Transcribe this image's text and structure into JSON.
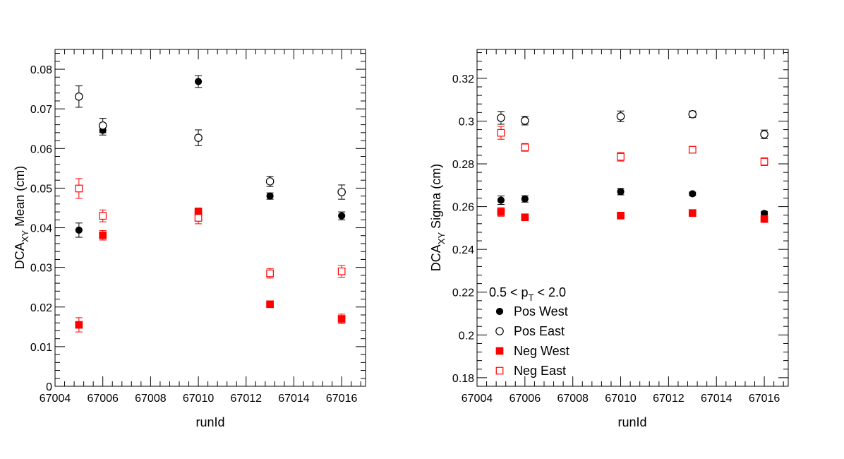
{
  "chart_data": [
    {
      "type": "scatter",
      "xlabel": "runId",
      "ylabel_main": "DCA",
      "ylabel_sub": "XY",
      "ylabel_rest": " Mean (cm)",
      "xlim": [
        67004,
        67017
      ],
      "ylim": [
        0,
        0.085
      ],
      "xticks": [
        67004,
        67006,
        67008,
        67010,
        67012,
        67014,
        67016
      ],
      "xtick_labels": [
        "67004",
        "67006",
        "67008",
        "67010",
        "67012",
        "67014",
        "67016"
      ],
      "yticks": [
        0,
        0.01,
        0.02,
        0.03,
        0.04,
        0.05,
        0.06,
        0.07,
        0.08
      ],
      "ytick_labels": [
        "0",
        "0.01",
        "0.02",
        "0.03",
        "0.04",
        "0.05",
        "0.06",
        "0.07",
        "0.08"
      ],
      "series": [
        {
          "name": "Pos West",
          "marker": "filled-circle",
          "color": "#000000",
          "x": [
            67005,
            67006,
            67010,
            67013,
            67016
          ],
          "y": [
            0.0394,
            0.0646,
            0.0769,
            0.048,
            0.043
          ],
          "err": [
            0.0018,
            0.0012,
            0.0015,
            0.0008,
            0.001
          ]
        },
        {
          "name": "Pos East",
          "marker": "open-circle",
          "color": "#000000",
          "x": [
            67005,
            67006,
            67010,
            67013,
            67016
          ],
          "y": [
            0.0731,
            0.0658,
            0.0627,
            0.0517,
            0.049
          ],
          "err": [
            0.0027,
            0.0018,
            0.002,
            0.0013,
            0.0018
          ]
        },
        {
          "name": "Neg West",
          "marker": "filled-square",
          "color": "#ff0000",
          "x": [
            67005,
            67006,
            67010,
            67013,
            67016
          ],
          "y": [
            0.0155,
            0.0381,
            0.044,
            0.0207,
            0.017
          ],
          "err": [
            0.0018,
            0.0012,
            0.001,
            0.0008,
            0.0012
          ]
        },
        {
          "name": "Neg East",
          "marker": "open-square",
          "color": "#ff0000",
          "x": [
            67005,
            67006,
            67010,
            67013,
            67016
          ],
          "y": [
            0.0499,
            0.043,
            0.0425,
            0.0285,
            0.029
          ],
          "err": [
            0.0025,
            0.0015,
            0.0015,
            0.0012,
            0.0015
          ]
        }
      ]
    },
    {
      "type": "scatter",
      "xlabel": "runId",
      "ylabel_main": "DCA",
      "ylabel_sub": "XY",
      "ylabel_rest": " Sigma (cm)",
      "xlim": [
        67004,
        67017
      ],
      "ylim": [
        0.176,
        0.3335
      ],
      "xticks": [
        67004,
        67006,
        67008,
        67010,
        67012,
        67014,
        67016
      ],
      "xtick_labels": [
        "67004",
        "67006",
        "67008",
        "67010",
        "67012",
        "67014",
        "67016"
      ],
      "yticks": [
        0.18,
        0.2,
        0.22,
        0.24,
        0.26,
        0.28,
        0.3,
        0.32
      ],
      "ytick_labels": [
        "0.18",
        "0.2",
        "0.22",
        "0.24",
        "0.26",
        "0.28",
        "0.3",
        "0.32"
      ],
      "legend": {
        "placement": "bottom-left",
        "header_main": "0.5 < p",
        "header_sub": "T",
        "header_rest": " < 2.0"
      },
      "series": [
        {
          "name": "Pos West",
          "marker": "filled-circle",
          "color": "#000000",
          "x": [
            67005,
            67006,
            67010,
            67013,
            67016
          ],
          "y": [
            0.263,
            0.2636,
            0.267,
            0.266,
            0.2568
          ],
          "err": [
            0.002,
            0.0015,
            0.0015,
            0.0008,
            0.001
          ]
        },
        {
          "name": "Pos East",
          "marker": "open-circle",
          "color": "#000000",
          "x": [
            67005,
            67006,
            67010,
            67013,
            67016
          ],
          "y": [
            0.3015,
            0.3002,
            0.3022,
            0.3032,
            0.2938
          ],
          "err": [
            0.003,
            0.002,
            0.0025,
            0.0015,
            0.002
          ]
        },
        {
          "name": "Neg West",
          "marker": "filled-square",
          "color": "#ff0000",
          "x": [
            67005,
            67006,
            67010,
            67013,
            67016
          ],
          "y": [
            0.2575,
            0.255,
            0.2558,
            0.257,
            0.2542
          ],
          "err": [
            0.002,
            0.001,
            0.001,
            0.0008,
            0.001
          ]
        },
        {
          "name": "Neg East",
          "marker": "open-square",
          "color": "#ff0000",
          "x": [
            67005,
            67006,
            67010,
            67013,
            67016
          ],
          "y": [
            0.2945,
            0.2877,
            0.2833,
            0.2866,
            0.281
          ],
          "err": [
            0.003,
            0.0018,
            0.002,
            0.0015,
            0.0018
          ]
        }
      ]
    }
  ]
}
